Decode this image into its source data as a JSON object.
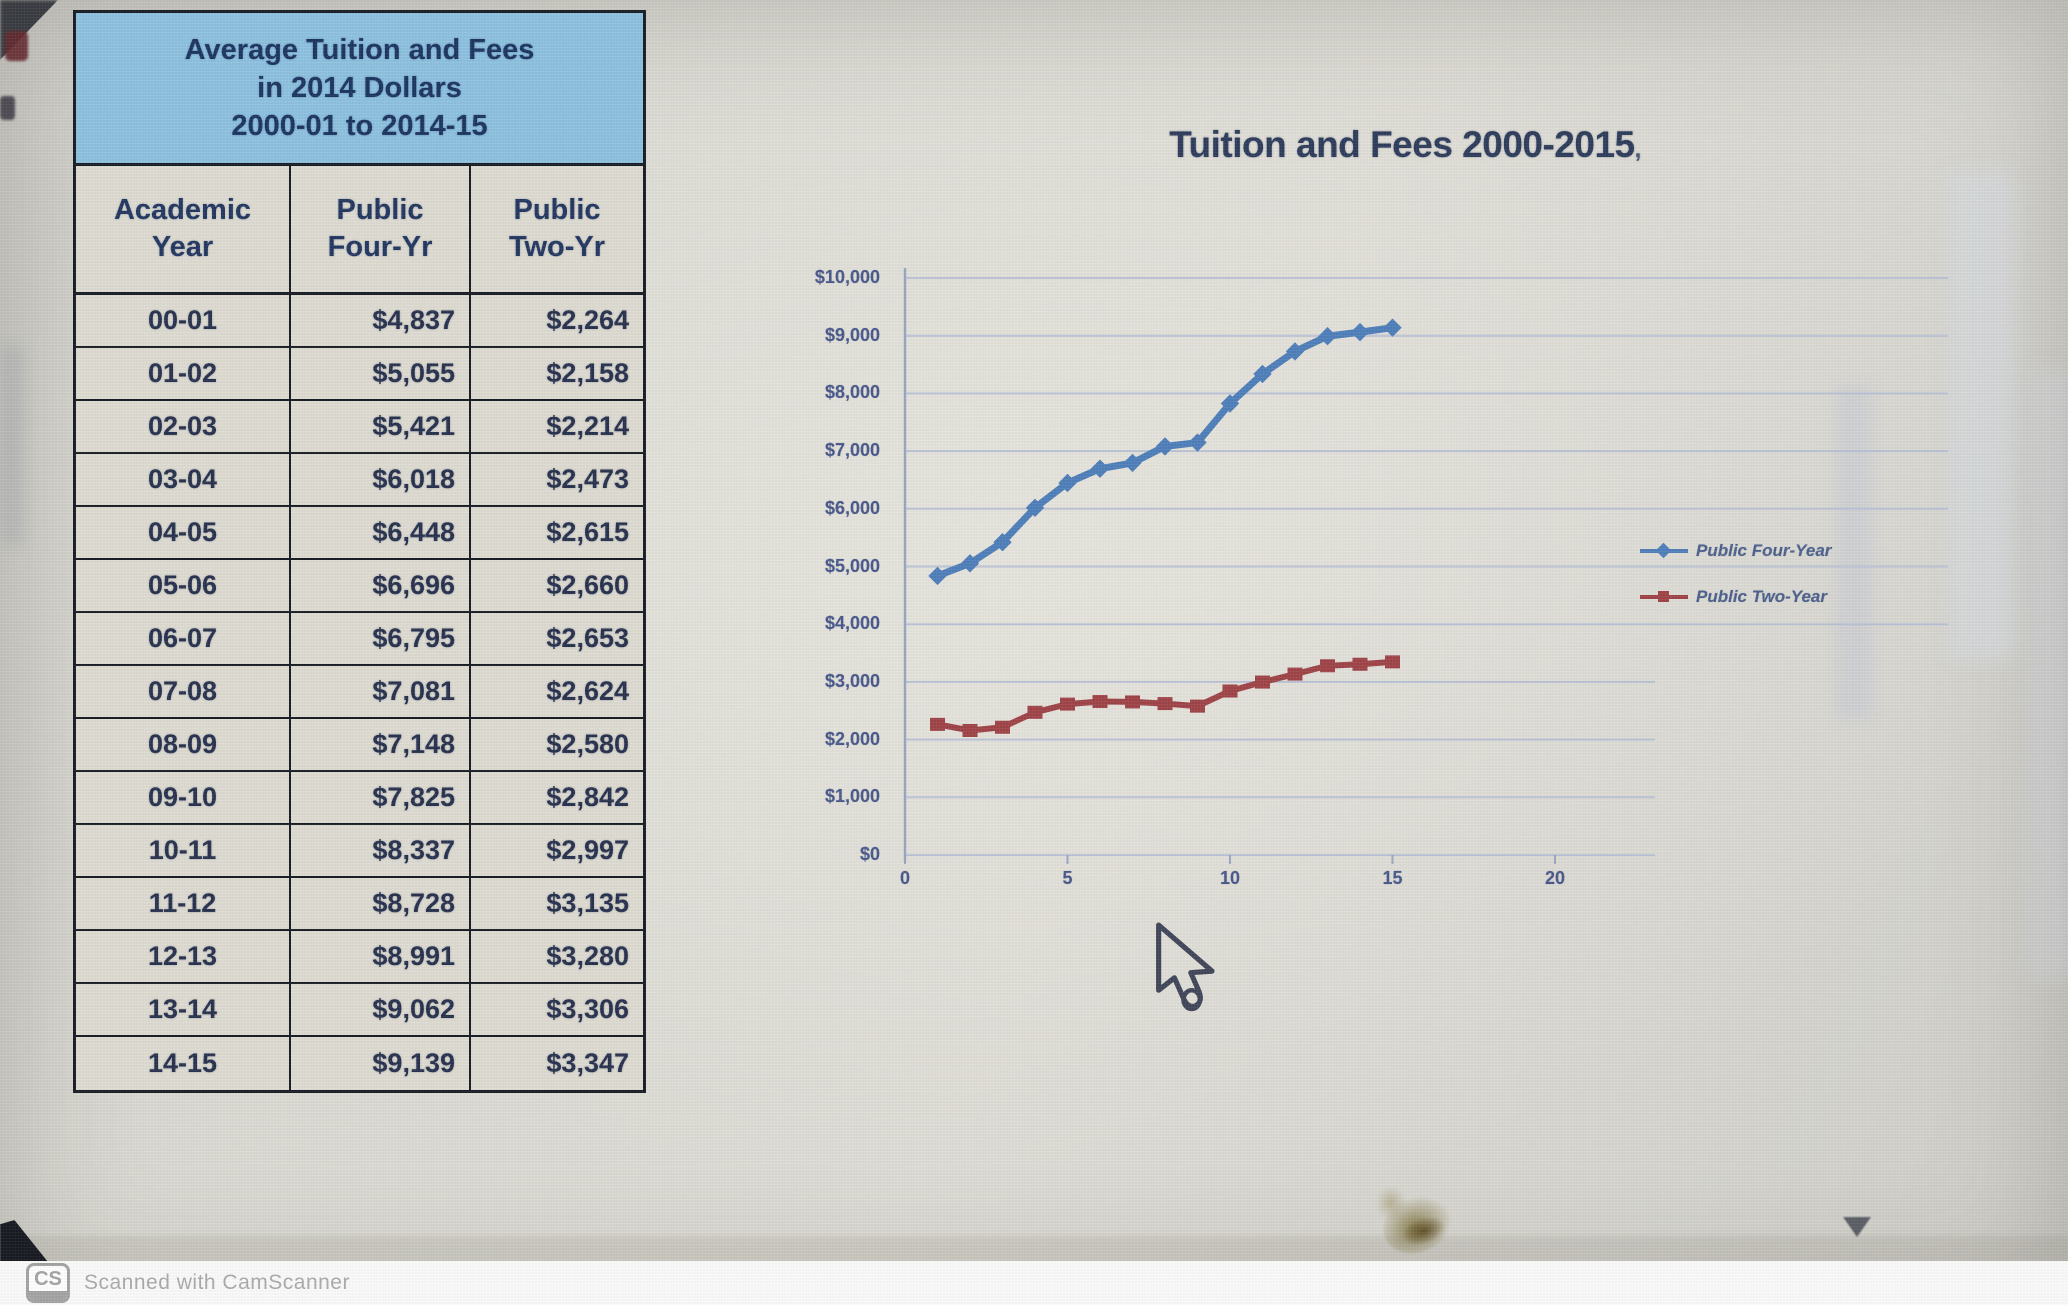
{
  "table": {
    "title_line1": "Average Tuition and Fees",
    "title_line2": "in 2014 Dollars",
    "title_line3": "2000-01 to 2014-15",
    "headers": [
      {
        "l1": "Academic",
        "l2": "Year"
      },
      {
        "l1": "Public",
        "l2": "Four-Yr"
      },
      {
        "l1": "Public",
        "l2": "Two-Yr"
      }
    ],
    "rows": [
      {
        "year": "00-01",
        "four_yr": "$4,837",
        "two_yr": "$2,264"
      },
      {
        "year": "01-02",
        "four_yr": "$5,055",
        "two_yr": "$2,158"
      },
      {
        "year": "02-03",
        "four_yr": "$5,421",
        "two_yr": "$2,214"
      },
      {
        "year": "03-04",
        "four_yr": "$6,018",
        "two_yr": "$2,473"
      },
      {
        "year": "04-05",
        "four_yr": "$6,448",
        "two_yr": "$2,615"
      },
      {
        "year": "05-06",
        "four_yr": "$6,696",
        "two_yr": "$2,660"
      },
      {
        "year": "06-07",
        "four_yr": "$6,795",
        "two_yr": "$2,653"
      },
      {
        "year": "07-08",
        "four_yr": "$7,081",
        "two_yr": "$2,624"
      },
      {
        "year": "08-09",
        "four_yr": "$7,148",
        "two_yr": "$2,580"
      },
      {
        "year": "09-10",
        "four_yr": "$7,825",
        "two_yr": "$2,842"
      },
      {
        "year": "10-11",
        "four_yr": "$8,337",
        "two_yr": "$2,997"
      },
      {
        "year": "11-12",
        "four_yr": "$8,728",
        "two_yr": "$3,135"
      },
      {
        "year": "12-13",
        "four_yr": "$8,991",
        "two_yr": "$3,280"
      },
      {
        "year": "13-14",
        "four_yr": "$9,062",
        "two_yr": "$3,306"
      },
      {
        "year": "14-15",
        "four_yr": "$9,139",
        "two_yr": "$3,347"
      }
    ]
  },
  "chart_data": {
    "type": "line",
    "title": "Tuition and Fees 2000-2015",
    "title_stray_mark": ",",
    "xlabel": "",
    "ylabel": "",
    "x_range": [
      0,
      20
    ],
    "y_range": [
      0,
      10000
    ],
    "grid": true,
    "legend_position": "right",
    "x_ticks": [
      {
        "label": "0",
        "value": 0
      },
      {
        "label": "5",
        "value": 5
      },
      {
        "label": "10",
        "value": 10
      },
      {
        "label": "15",
        "value": 15
      },
      {
        "label": "20",
        "value": 20
      }
    ],
    "y_ticks": [
      {
        "label": "$0",
        "value": 0
      },
      {
        "label": "$1,000",
        "value": 1000
      },
      {
        "label": "$2,000",
        "value": 2000
      },
      {
        "label": "$3,000",
        "value": 3000
      },
      {
        "label": "$4,000",
        "value": 4000
      },
      {
        "label": "$5,000",
        "value": 5000
      },
      {
        "label": "$6,000",
        "value": 6000
      },
      {
        "label": "$7,000",
        "value": 7000
      },
      {
        "label": "$8,000",
        "value": 8000
      },
      {
        "label": "$9,000",
        "value": 9000
      },
      {
        "label": "$10,000",
        "value": 10000
      }
    ],
    "x_values": [
      1,
      2,
      3,
      4,
      5,
      6,
      7,
      8,
      9,
      10,
      11,
      12,
      13,
      14,
      15
    ],
    "series": [
      {
        "name": "Public Four-Year",
        "color": "#4f7fba",
        "marker": "diamond",
        "values": [
          4837,
          5055,
          5421,
          6018,
          6448,
          6696,
          6795,
          7081,
          7148,
          7825,
          8337,
          8728,
          8991,
          9062,
          9139
        ]
      },
      {
        "name": "Public Two-Year",
        "color": "#a04448",
        "marker": "square",
        "values": [
          2264,
          2158,
          2214,
          2473,
          2615,
          2660,
          2653,
          2624,
          2580,
          2842,
          2997,
          3135,
          3280,
          3306,
          3347
        ]
      }
    ],
    "style": {
      "grid_color": "#b7c0d5",
      "axis_color": "#9aa7c2",
      "title_color": "#2e3d5c",
      "label_color": "#49598b",
      "table_header_bg": "#8ec2e0"
    }
  },
  "footer": {
    "logo": "CS",
    "text": "Scanned with CamScanner"
  }
}
